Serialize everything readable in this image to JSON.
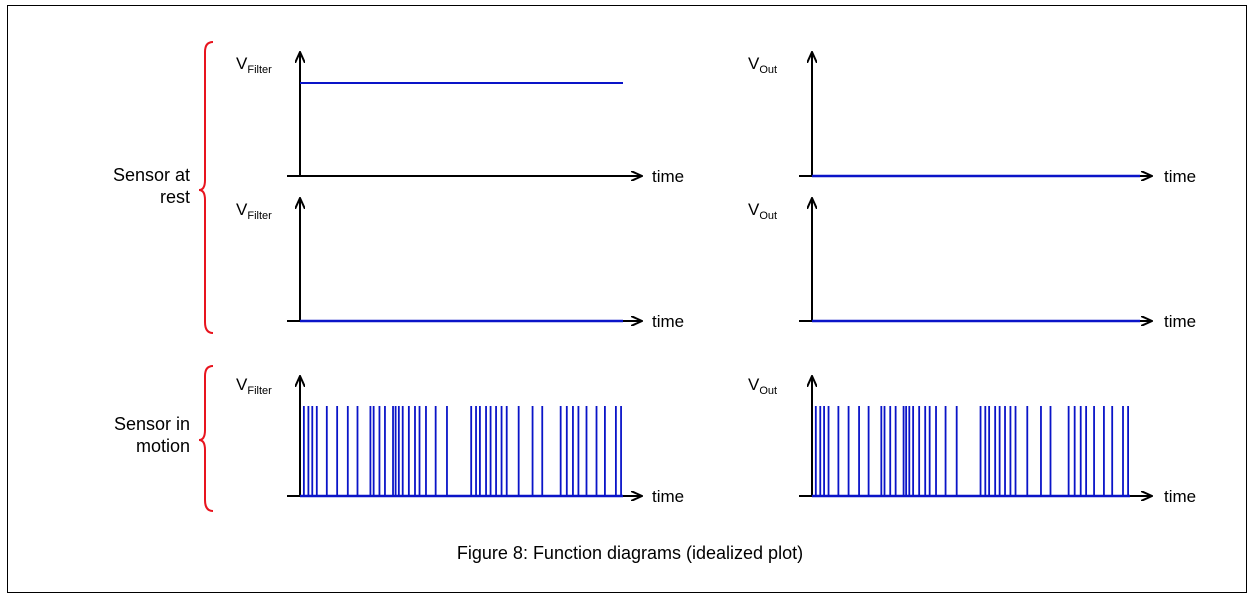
{
  "groups": [
    {
      "label_lines": [
        "Sensor at",
        "rest"
      ],
      "bracket_color": "#e8141e"
    },
    {
      "label_lines": [
        "Sensor in",
        "motion"
      ],
      "bracket_color": "#e8141e"
    }
  ],
  "axis_labels": {
    "filter_main": "V",
    "filter_sub": "Filter",
    "out_main": "V",
    "out_sub": "Out",
    "time": "time"
  },
  "plots": [
    {
      "id": "rest-1-filter",
      "y_axis": "filter",
      "signal": "constant",
      "level": 0.75
    },
    {
      "id": "rest-1-out",
      "y_axis": "out",
      "signal": "zero"
    },
    {
      "id": "rest-2-filter",
      "y_axis": "filter",
      "signal": "zero"
    },
    {
      "id": "rest-2-out",
      "y_axis": "out",
      "signal": "zero"
    },
    {
      "id": "motion-filter",
      "y_axis": "filter",
      "signal": "pulses",
      "level": 0.75
    },
    {
      "id": "motion-out",
      "y_axis": "out",
      "signal": "pulses",
      "level": 0.75
    }
  ],
  "pulse_positions": [
    0.012,
    0.026,
    0.038,
    0.052,
    0.083,
    0.115,
    0.148,
    0.178,
    0.218,
    0.228,
    0.246,
    0.263,
    0.288,
    0.296,
    0.306,
    0.318,
    0.337,
    0.356,
    0.37,
    0.39,
    0.42,
    0.455,
    0.53,
    0.545,
    0.557,
    0.576,
    0.59,
    0.607,
    0.624,
    0.64,
    0.677,
    0.72,
    0.75,
    0.807,
    0.826,
    0.845,
    0.862,
    0.887,
    0.918,
    0.944,
    0.978,
    0.994
  ],
  "colors": {
    "signal": "#0a14c8",
    "axis": "#000000",
    "bracket": "#e8141e"
  },
  "caption": "Figure 8: Function diagrams (idealized plot)"
}
